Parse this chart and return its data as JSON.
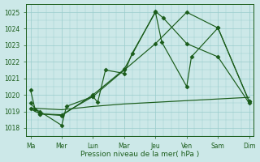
{
  "xlabel": "Pression niveau de la mer( hPa )",
  "background_color": "#cce8e8",
  "grid_color": "#99cccc",
  "line_color": "#1a5c1a",
  "ylim": [
    1017.5,
    1025.5
  ],
  "xlim": [
    -0.3,
    14.3
  ],
  "xtick_labels": [
    "Ma",
    "Mer",
    "Lun",
    "Mar",
    "Jeu",
    "Ven",
    "Sam",
    "Dim"
  ],
  "xtick_positions": [
    0,
    2,
    4,
    6,
    8,
    10,
    12,
    14
  ],
  "ytick_values": [
    1018,
    1019,
    1020,
    1021,
    1022,
    1023,
    1024,
    1025
  ],
  "line1_x": [
    0,
    0.3,
    0.6,
    2,
    2.3,
    4,
    4.3,
    4.8,
    6,
    6.5,
    8,
    8.4,
    10,
    10.3,
    12,
    14
  ],
  "line1_y": [
    1020.3,
    1019.1,
    1019.0,
    1018.15,
    1019.3,
    1019.9,
    1019.55,
    1021.5,
    1021.3,
    1022.5,
    1025.0,
    1023.2,
    1020.5,
    1022.3,
    1024.05,
    1019.6
  ],
  "line2_x": [
    0,
    0.6,
    2,
    4,
    6,
    8,
    10,
    12,
    14
  ],
  "line2_y": [
    1019.15,
    1018.85,
    1018.8,
    1019.9,
    1021.5,
    1023.1,
    1025.0,
    1024.05,
    1019.6
  ],
  "line3_x": [
    0,
    2,
    4,
    6,
    8,
    10,
    12,
    14
  ],
  "line3_y": [
    1019.2,
    1019.1,
    1019.3,
    1019.45,
    1019.55,
    1019.65,
    1019.75,
    1019.85
  ],
  "line4_x": [
    0,
    0.6,
    2,
    4,
    6,
    8,
    8.5,
    10,
    12,
    14
  ],
  "line4_y": [
    1019.5,
    1018.85,
    1018.75,
    1020.0,
    1021.55,
    1025.05,
    1024.65,
    1023.1,
    1022.3,
    1019.5
  ],
  "marker": "D",
  "markersize": 2.5,
  "linewidth": 0.85
}
